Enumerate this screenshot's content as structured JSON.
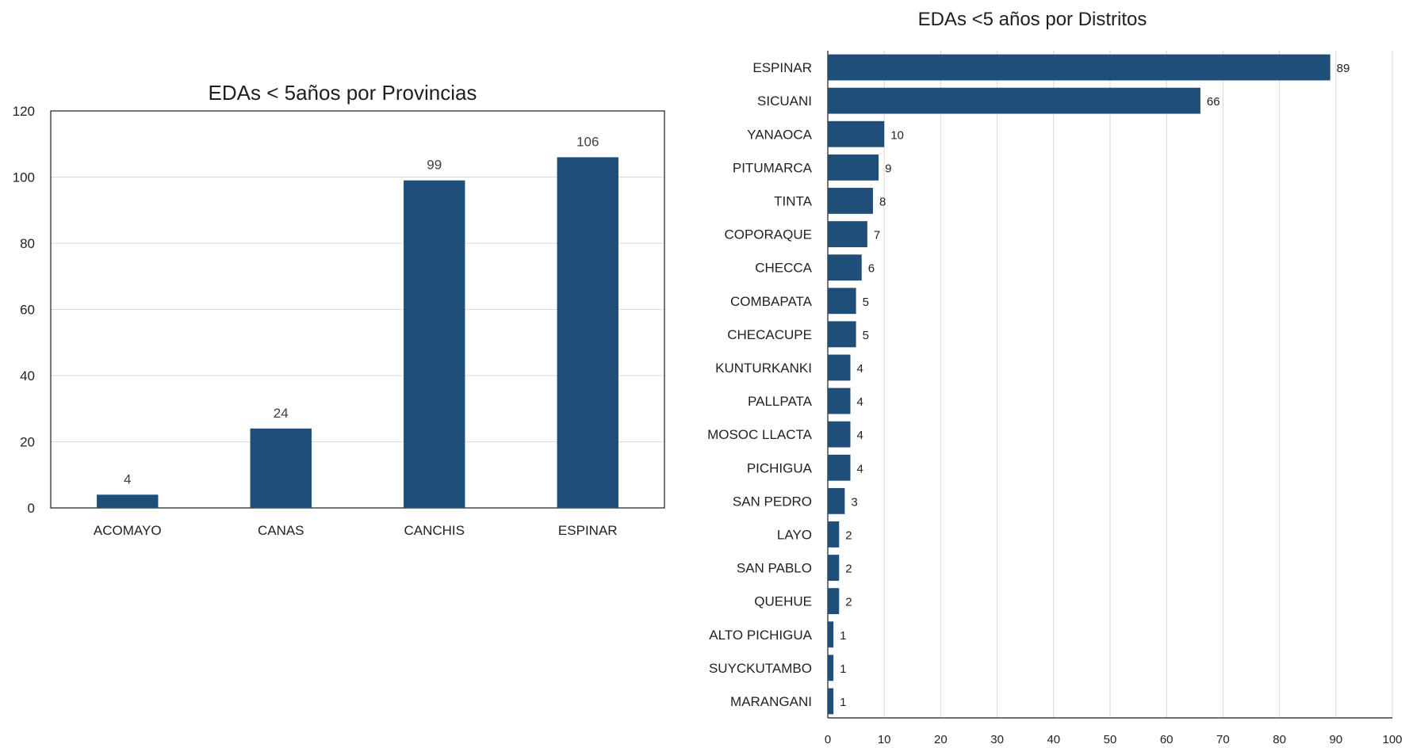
{
  "chart_data": [
    {
      "type": "bar",
      "title": "EDAs < 5años por Provincias",
      "categories": [
        "ACOMAYO",
        "CANAS",
        "CANCHIS",
        "ESPINAR"
      ],
      "values": [
        4,
        24,
        99,
        106
      ],
      "ylim": [
        0,
        120
      ],
      "yticks": [
        0,
        20,
        40,
        60,
        80,
        100,
        120
      ],
      "grid": true,
      "bar_color": "#1f4e79",
      "data_labels": true
    },
    {
      "type": "bar",
      "orientation": "horizontal",
      "title": "EDAs <5 años  por  Distritos",
      "categories": [
        "ESPINAR",
        "SICUANI",
        "YANAOCA",
        "PITUMARCA",
        "TINTA",
        "COPORAQUE",
        "CHECCA",
        "COMBAPATA",
        "CHECACUPE",
        "KUNTURKANKI",
        "PALLPATA",
        "MOSOC LLACTA",
        "PICHIGUA",
        "SAN PEDRO",
        "LAYO",
        "SAN PABLO",
        "QUEHUE",
        "ALTO PICHIGUA",
        "SUYCKUTAMBO",
        "MARANGANI"
      ],
      "values": [
        89,
        66,
        10,
        9,
        8,
        7,
        6,
        5,
        5,
        4,
        4,
        4,
        4,
        3,
        2,
        2,
        2,
        1,
        1,
        1
      ],
      "xlim": [
        0,
        100
      ],
      "xticks": [
        0,
        10,
        20,
        30,
        40,
        50,
        60,
        70,
        80,
        90,
        100
      ],
      "grid": true,
      "bar_color": "#1f4e79",
      "data_labels": true
    }
  ]
}
